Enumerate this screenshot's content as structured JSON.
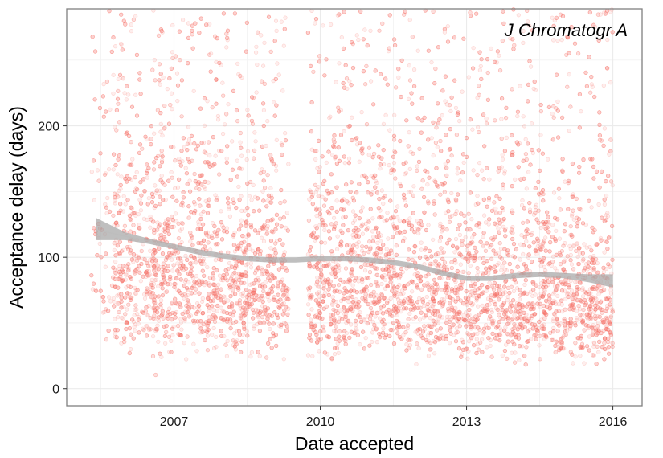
{
  "chart_data": {
    "type": "scatter",
    "annotation": "J Chromatogr A",
    "xlabel": "Date accepted",
    "ylabel": "Acceptance delay (days)",
    "xlim": [
      2004.8,
      2016.6
    ],
    "ylim": [
      -13,
      289
    ],
    "x_ticks": [
      2007,
      2010,
      2013,
      2016
    ],
    "y_ticks": [
      0,
      100,
      200
    ],
    "grid": true,
    "point_color": "#F8766D",
    "smooth_color": "#AAAAAA",
    "scatter": {
      "x_range": [
        2005.3,
        2016.0
      ],
      "gap": [
        2009.35,
        2009.75
      ],
      "approx_point_count": 9000,
      "typical_delay": [
        40,
        120
      ],
      "max_delay": 289
    },
    "smooth": {
      "x": [
        2005.4,
        2006.0,
        2006.5,
        2007.0,
        2007.5,
        2008.0,
        2008.5,
        2009.0,
        2009.5,
        2010.0,
        2010.5,
        2011.0,
        2011.5,
        2012.0,
        2012.5,
        2013.0,
        2013.5,
        2014.0,
        2014.5,
        2015.0,
        2015.5,
        2016.0
      ],
      "y": [
        121,
        116,
        112,
        108,
        104,
        101,
        99,
        98,
        98,
        99,
        99,
        98,
        96,
        93,
        88,
        84,
        84,
        86,
        87,
        86,
        84,
        82
      ],
      "se_lower": [
        113,
        113,
        110,
        106,
        102,
        99,
        97,
        96,
        96,
        97,
        97,
        96,
        94,
        91,
        86,
        82,
        82,
        84,
        85,
        84,
        81,
        77
      ],
      "se_upper": [
        130,
        119,
        114,
        110,
        106,
        103,
        101,
        100,
        100,
        101,
        101,
        100,
        98,
        95,
        90,
        86,
        86,
        88,
        89,
        88,
        87,
        87
      ]
    }
  }
}
